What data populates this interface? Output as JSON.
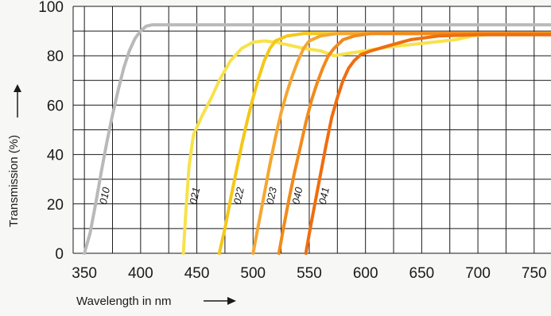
{
  "chart_data": {
    "type": "line",
    "title": "",
    "xlabel": "Wavelength in nm",
    "ylabel": "Transmission (%)",
    "xlim": [
      340,
      765
    ],
    "ylim": [
      0,
      100
    ],
    "x_ticks": [
      350,
      400,
      450,
      500,
      550,
      600,
      650,
      700,
      750
    ],
    "y_ticks": [
      0,
      20,
      40,
      60,
      80,
      100
    ],
    "grid": true,
    "legend": "none",
    "series": [
      {
        "name": "010",
        "color": "#b9b9b9",
        "points": [
          [
            350,
            0
          ],
          [
            355,
            8
          ],
          [
            360,
            20
          ],
          [
            365,
            33
          ],
          [
            370,
            45
          ],
          [
            375,
            56
          ],
          [
            380,
            66
          ],
          [
            385,
            75
          ],
          [
            390,
            82
          ],
          [
            395,
            87
          ],
          [
            400,
            90
          ],
          [
            405,
            92
          ],
          [
            410,
            92.5
          ],
          [
            450,
            92.5
          ],
          [
            500,
            92.5
          ],
          [
            550,
            92.5
          ],
          [
            600,
            92.5
          ],
          [
            650,
            92.5
          ],
          [
            700,
            92.5
          ],
          [
            765,
            92.5
          ]
        ]
      },
      {
        "name": "021",
        "color": "#f7e24a",
        "points": [
          [
            438,
            0
          ],
          [
            440,
            15
          ],
          [
            443,
            35
          ],
          [
            447,
            48
          ],
          [
            455,
            56
          ],
          [
            463,
            63
          ],
          [
            470,
            70
          ],
          [
            480,
            78
          ],
          [
            490,
            83
          ],
          [
            500,
            85.5
          ],
          [
            510,
            86
          ],
          [
            520,
            85.5
          ],
          [
            530,
            84.5
          ],
          [
            545,
            83
          ],
          [
            560,
            82
          ],
          [
            572,
            80
          ],
          [
            585,
            81
          ],
          [
            600,
            82
          ],
          [
            620,
            83.5
          ],
          [
            640,
            84.5
          ],
          [
            660,
            85.5
          ],
          [
            680,
            86.5
          ],
          [
            695,
            88
          ],
          [
            720,
            89
          ],
          [
            765,
            89
          ]
        ]
      },
      {
        "name": "022",
        "color": "#f5c718",
        "points": [
          [
            470,
            0
          ],
          [
            475,
            10
          ],
          [
            480,
            22
          ],
          [
            485,
            33
          ],
          [
            490,
            44
          ],
          [
            495,
            54
          ],
          [
            500,
            63
          ],
          [
            505,
            71
          ],
          [
            510,
            78
          ],
          [
            515,
            83
          ],
          [
            520,
            86
          ],
          [
            530,
            88
          ],
          [
            545,
            89
          ],
          [
            600,
            89
          ],
          [
            700,
            89
          ],
          [
            765,
            89
          ]
        ]
      },
      {
        "name": "023",
        "color": "#f4a732",
        "points": [
          [
            500,
            0
          ],
          [
            505,
            12
          ],
          [
            510,
            24
          ],
          [
            515,
            36
          ],
          [
            520,
            47
          ],
          [
            525,
            57
          ],
          [
            530,
            65
          ],
          [
            535,
            72
          ],
          [
            540,
            78
          ],
          [
            545,
            83
          ],
          [
            550,
            86
          ],
          [
            560,
            88
          ],
          [
            575,
            89
          ],
          [
            600,
            89
          ],
          [
            700,
            89
          ],
          [
            765,
            89
          ]
        ]
      },
      {
        "name": "040",
        "color": "#f18a1c",
        "points": [
          [
            523,
            0
          ],
          [
            527,
            10
          ],
          [
            532,
            22
          ],
          [
            537,
            33
          ],
          [
            542,
            43
          ],
          [
            547,
            53
          ],
          [
            552,
            62
          ],
          [
            557,
            69
          ],
          [
            562,
            75
          ],
          [
            567,
            80
          ],
          [
            572,
            83
          ],
          [
            580,
            86.5
          ],
          [
            590,
            88
          ],
          [
            605,
            89
          ],
          [
            650,
            89
          ],
          [
            700,
            89
          ],
          [
            765,
            89
          ]
        ]
      },
      {
        "name": "041",
        "color": "#ef6d10",
        "points": [
          [
            547,
            0
          ],
          [
            550,
            8
          ],
          [
            555,
            20
          ],
          [
            560,
            32
          ],
          [
            565,
            44
          ],
          [
            570,
            55
          ],
          [
            575,
            63
          ],
          [
            580,
            70
          ],
          [
            585,
            75
          ],
          [
            590,
            78
          ],
          [
            596,
            80.5
          ],
          [
            605,
            82
          ],
          [
            620,
            84
          ],
          [
            640,
            86.5
          ],
          [
            665,
            88
          ],
          [
            700,
            88.5
          ],
          [
            765,
            88.5
          ]
        ]
      }
    ]
  }
}
